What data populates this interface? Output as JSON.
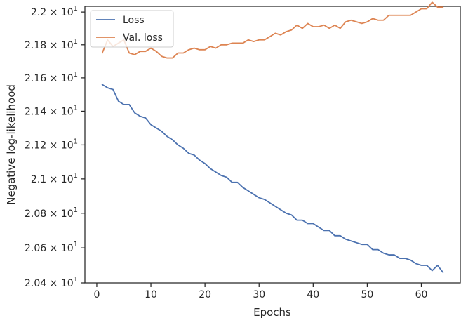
{
  "chart_data": {
    "type": "line",
    "xlabel": "Epochs",
    "ylabel": "Negative log-likelihood",
    "xlim": [
      -2.2,
      67.2
    ],
    "ylim": [
      20.4,
      22.035
    ],
    "y_scale": "log",
    "xticks": [
      0,
      10,
      20,
      30,
      40,
      50,
      60
    ],
    "yticks": [
      {
        "value": 20.4,
        "mantissa": "2.04",
        "exp": "1"
      },
      {
        "value": 20.6,
        "mantissa": "2.06",
        "exp": "1"
      },
      {
        "value": 20.8,
        "mantissa": "2.08",
        "exp": "1"
      },
      {
        "value": 21.0,
        "mantissa": "2.1",
        "exp": "1"
      },
      {
        "value": 21.2,
        "mantissa": "2.12",
        "exp": "1"
      },
      {
        "value": 21.4,
        "mantissa": "2.14",
        "exp": "1"
      },
      {
        "value": 21.6,
        "mantissa": "2.16",
        "exp": "1"
      },
      {
        "value": 21.8,
        "mantissa": "2.18",
        "exp": "1"
      },
      {
        "value": 22.0,
        "mantissa": "2.2",
        "exp": "1"
      }
    ],
    "grid": false,
    "legend_position": "top-left",
    "x": [
      1,
      2,
      3,
      4,
      5,
      6,
      7,
      8,
      9,
      10,
      11,
      12,
      13,
      14,
      15,
      16,
      17,
      18,
      19,
      20,
      21,
      22,
      23,
      24,
      25,
      26,
      27,
      28,
      29,
      30,
      31,
      32,
      33,
      34,
      35,
      36,
      37,
      38,
      39,
      40,
      41,
      42,
      43,
      44,
      45,
      46,
      47,
      48,
      49,
      50,
      51,
      52,
      53,
      54,
      55,
      56,
      57,
      58,
      59,
      60,
      61,
      62,
      63,
      64
    ],
    "series": [
      {
        "name": "Loss",
        "color": "#4c72b0",
        "values": [
          21.56,
          21.54,
          21.53,
          21.46,
          21.44,
          21.44,
          21.39,
          21.37,
          21.36,
          21.32,
          21.3,
          21.28,
          21.25,
          21.23,
          21.2,
          21.18,
          21.15,
          21.14,
          21.11,
          21.09,
          21.06,
          21.04,
          21.02,
          21.01,
          20.98,
          20.98,
          20.95,
          20.93,
          20.91,
          20.89,
          20.88,
          20.86,
          20.84,
          20.82,
          20.8,
          20.79,
          20.76,
          20.76,
          20.74,
          20.74,
          20.72,
          20.7,
          20.7,
          20.67,
          20.67,
          20.65,
          20.64,
          20.63,
          20.62,
          20.62,
          20.59,
          20.59,
          20.57,
          20.56,
          20.56,
          20.54,
          20.54,
          20.53,
          20.51,
          20.5,
          20.5,
          20.47,
          20.5,
          20.46
        ]
      },
      {
        "name": "Val. loss",
        "color": "#dd8452",
        "values": [
          21.75,
          21.83,
          21.79,
          21.81,
          21.83,
          21.75,
          21.74,
          21.76,
          21.76,
          21.78,
          21.76,
          21.73,
          21.72,
          21.72,
          21.75,
          21.75,
          21.77,
          21.78,
          21.77,
          21.77,
          21.79,
          21.78,
          21.8,
          21.8,
          21.81,
          21.81,
          21.81,
          21.83,
          21.82,
          21.83,
          21.83,
          21.85,
          21.87,
          21.86,
          21.88,
          21.89,
          21.92,
          21.9,
          21.93,
          21.91,
          21.91,
          21.92,
          21.9,
          21.92,
          21.9,
          21.94,
          21.95,
          21.94,
          21.93,
          21.94,
          21.96,
          21.95,
          21.95,
          21.98,
          21.98,
          21.98,
          21.98,
          21.98,
          22.0,
          22.02,
          22.02,
          22.06,
          22.03,
          22.03
        ]
      }
    ]
  }
}
